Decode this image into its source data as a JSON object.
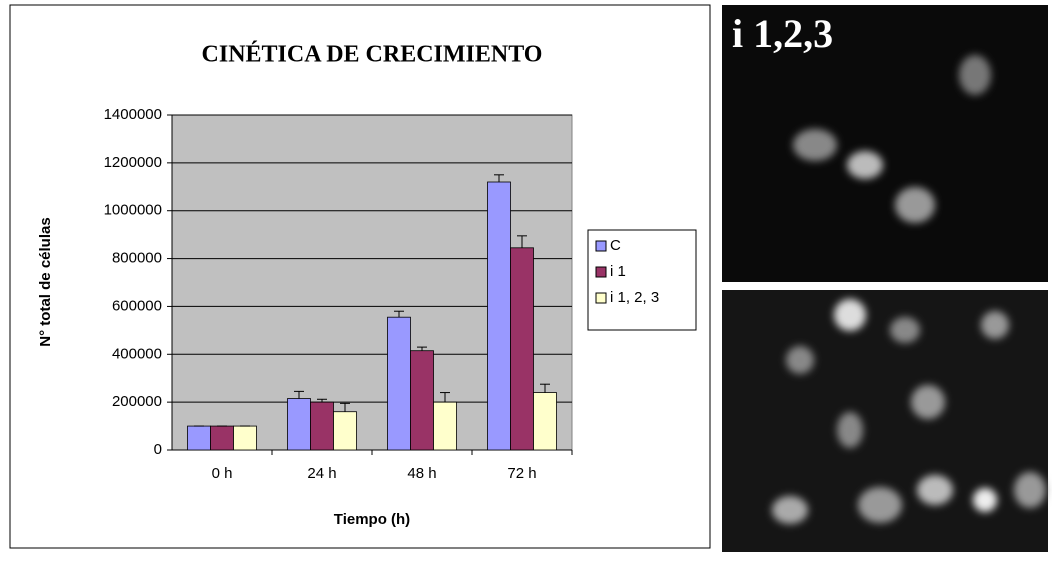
{
  "chart_data": {
    "type": "bar",
    "title": "CINÉTICA DE CRECIMIENTO",
    "x_label": "Tiempo (h)",
    "y_label": "N° total de células",
    "categories": [
      "0 h",
      "24 h",
      "48 h",
      "72 h"
    ],
    "series": [
      {
        "name": "C",
        "color": "#9999ff",
        "values": [
          100000,
          215000,
          555000,
          1120000
        ],
        "errors": [
          0,
          30000,
          25000,
          30000
        ]
      },
      {
        "name": "i 1",
        "color": "#993366",
        "values": [
          100000,
          200000,
          415000,
          845000
        ],
        "errors": [
          0,
          12000,
          15000,
          50000
        ]
      },
      {
        "name": "i 1, 2, 3",
        "color": "#ffffcc",
        "values": [
          100000,
          160000,
          200000,
          240000
        ],
        "errors": [
          0,
          35000,
          40000,
          35000
        ]
      }
    ],
    "ylim": [
      0,
      1400000
    ],
    "yticks": [
      0,
      200000,
      400000,
      600000,
      800000,
      1000000,
      1200000,
      1400000
    ],
    "grid": true,
    "plot_background": "#c0c0c0",
    "legend": "right"
  },
  "image_label": "i 1,2,3"
}
